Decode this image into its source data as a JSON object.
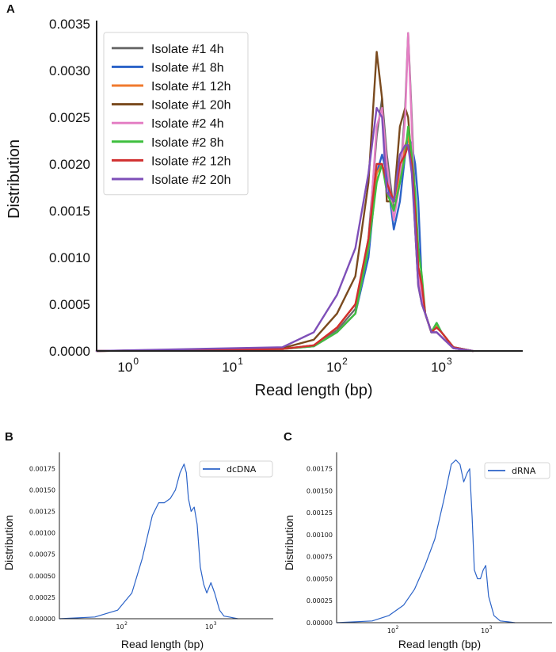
{
  "panels": {
    "A": "A",
    "B": "B",
    "C": "C"
  },
  "chart_data": [
    {
      "panel": "A",
      "type": "line",
      "xscale": "log",
      "xlim": [
        0.5,
        6000
      ],
      "ylim": [
        0,
        0.0035
      ],
      "xlabel": "Read length (bp)",
      "ylabel": "Distribution",
      "y_ticks": [
        "0.0000",
        "0.0005",
        "0.0010",
        "0.0015",
        "0.0020",
        "0.0025",
        "0.0030",
        "0.0035"
      ],
      "x_ticks": [
        {
          "value": 1,
          "base": "10",
          "exp": "0"
        },
        {
          "value": 10,
          "base": "10",
          "exp": "1"
        },
        {
          "value": 100,
          "base": "10",
          "exp": "2"
        },
        {
          "value": 1000,
          "base": "10",
          "exp": "3"
        }
      ],
      "legend_position": "top-left",
      "series": [
        {
          "name": "Isolate #1 4h",
          "color": "#6b6b6b",
          "x": [
            0.5,
            30,
            60,
            100,
            150,
            200,
            240,
            270,
            300,
            350,
            400,
            450,
            480,
            520,
            560,
            600,
            650,
            700,
            800,
            900,
            1000,
            1300,
            2000
          ],
          "y": [
            0,
            2e-05,
            6e-05,
            0.00022,
            0.00045,
            0.0012,
            0.0023,
            0.0027,
            0.0021,
            0.0015,
            0.0018,
            0.0026,
            0.0034,
            0.0025,
            0.0016,
            0.0008,
            0.0006,
            0.0004,
            0.0002,
            0.0002,
            0.00015,
            3e-05,
            0
          ]
        },
        {
          "name": "Isolate #1 8h",
          "color": "#2b63c8",
          "x": [
            0.5,
            30,
            60,
            100,
            150,
            200,
            240,
            270,
            300,
            350,
            400,
            450,
            480,
            520,
            560,
            600,
            650,
            700,
            800,
            900,
            1000,
            1300,
            2000
          ],
          "y": [
            0,
            2e-05,
            5e-05,
            0.0002,
            0.0004,
            0.001,
            0.0019,
            0.0021,
            0.0019,
            0.0013,
            0.0016,
            0.0021,
            0.0023,
            0.0022,
            0.002,
            0.0016,
            0.0007,
            0.0004,
            0.0002,
            0.0003,
            0.0002,
            4e-05,
            0
          ]
        },
        {
          "name": "Isolate #1 12h",
          "color": "#f07a2e",
          "x": [
            0.5,
            30,
            60,
            100,
            150,
            200,
            240,
            270,
            300,
            350,
            400,
            450,
            480,
            520,
            560,
            600,
            650,
            700,
            800,
            900,
            1000,
            1300,
            2000
          ],
          "y": [
            0,
            2e-05,
            6e-05,
            0.00025,
            0.0005,
            0.0011,
            0.0019,
            0.002,
            0.0018,
            0.0016,
            0.0019,
            0.0022,
            0.0023,
            0.002,
            0.0015,
            0.0009,
            0.0007,
            0.0004,
            0.0002,
            0.00028,
            0.0002,
            4e-05,
            0
          ]
        },
        {
          "name": "Isolate #1 20h",
          "color": "#7a4a1e",
          "x": [
            0.5,
            30,
            60,
            100,
            150,
            200,
            240,
            270,
            300,
            350,
            400,
            450,
            480,
            520,
            560,
            600,
            650,
            700,
            800,
            900,
            1000,
            1300,
            2000
          ],
          "y": [
            0,
            3e-05,
            0.00012,
            0.0004,
            0.0008,
            0.0018,
            0.0032,
            0.0027,
            0.0016,
            0.0016,
            0.0024,
            0.0026,
            0.0025,
            0.002,
            0.0013,
            0.0007,
            0.0005,
            0.0004,
            0.0002,
            0.0002,
            0.00015,
            3e-05,
            0
          ]
        },
        {
          "name": "Isolate #2 4h",
          "color": "#e47fc4",
          "x": [
            0.5,
            30,
            60,
            100,
            150,
            200,
            240,
            270,
            300,
            350,
            400,
            450,
            480,
            520,
            560,
            600,
            650,
            700,
            800,
            900,
            1000,
            1300,
            2000
          ],
          "y": [
            0,
            2e-05,
            5e-05,
            0.0002,
            0.0004,
            0.0011,
            0.0024,
            0.0026,
            0.002,
            0.0014,
            0.0018,
            0.0025,
            0.0034,
            0.0024,
            0.0015,
            0.0008,
            0.0006,
            0.0004,
            0.0002,
            0.0002,
            0.00015,
            3e-05,
            0
          ]
        },
        {
          "name": "Isolate #2 8h",
          "color": "#3fbf3f",
          "x": [
            0.5,
            30,
            60,
            100,
            150,
            200,
            240,
            270,
            300,
            350,
            400,
            450,
            480,
            520,
            560,
            600,
            650,
            700,
            800,
            900,
            1000,
            1300,
            2000
          ],
          "y": [
            0,
            2e-05,
            5e-05,
            0.0002,
            0.0004,
            0.0011,
            0.0018,
            0.002,
            0.0017,
            0.0015,
            0.0018,
            0.0021,
            0.0024,
            0.0021,
            0.0017,
            0.0011,
            0.0008,
            0.0004,
            0.0002,
            0.0003,
            0.0002,
            4e-05,
            0
          ]
        },
        {
          "name": "Isolate #2 12h",
          "color": "#d12f2f",
          "x": [
            0.5,
            30,
            60,
            100,
            150,
            200,
            240,
            270,
            300,
            350,
            400,
            450,
            480,
            520,
            560,
            600,
            650,
            700,
            800,
            900,
            1000,
            1300,
            2000
          ],
          "y": [
            0,
            2e-05,
            6e-05,
            0.00025,
            0.0005,
            0.0012,
            0.002,
            0.002,
            0.0018,
            0.0016,
            0.002,
            0.0021,
            0.0022,
            0.002,
            0.0015,
            0.0009,
            0.0007,
            0.0004,
            0.0002,
            0.00025,
            0.0002,
            4e-05,
            0
          ]
        },
        {
          "name": "Isolate #2 20h",
          "color": "#7e4fb8",
          "x": [
            0.5,
            30,
            60,
            100,
            150,
            200,
            240,
            270,
            300,
            350,
            400,
            450,
            480,
            520,
            560,
            600,
            650,
            700,
            800,
            900,
            1000,
            1300,
            2000
          ],
          "y": [
            0,
            4e-05,
            0.0002,
            0.0006,
            0.0011,
            0.0019,
            0.0026,
            0.0025,
            0.0017,
            0.0016,
            0.0021,
            0.0022,
            0.0022,
            0.0019,
            0.0013,
            0.0007,
            0.0005,
            0.0004,
            0.0002,
            0.0002,
            0.00015,
            3e-05,
            0
          ]
        }
      ]
    },
    {
      "panel": "B",
      "type": "line",
      "xscale": "log",
      "xlim": [
        20,
        5000
      ],
      "ylim": [
        0,
        0.0019
      ],
      "xlabel": "Read length (bp)",
      "ylabel": "Distribution",
      "y_ticks": [
        "0.00000",
        "0.00025",
        "0.00050",
        "0.00075",
        "0.00100",
        "0.00125",
        "0.00150",
        "0.00175"
      ],
      "x_ticks": [
        {
          "value": 100,
          "base": "10",
          "exp": "2"
        },
        {
          "value": 1000,
          "base": "10",
          "exp": "3"
        }
      ],
      "legend_position": "top-right",
      "series": [
        {
          "name": "dcDNA",
          "color": "#2b63c8",
          "x": [
            20,
            50,
            90,
            130,
            170,
            220,
            260,
            300,
            350,
            400,
            450,
            500,
            530,
            560,
            600,
            650,
            700,
            760,
            830,
            900,
            1000,
            1100,
            1250,
            1400,
            1600,
            2000
          ],
          "y": [
            0,
            2e-05,
            0.0001,
            0.0003,
            0.0007,
            0.0012,
            0.00135,
            0.00135,
            0.0014,
            0.0015,
            0.0017,
            0.0018,
            0.0017,
            0.0014,
            0.00125,
            0.0013,
            0.0011,
            0.0006,
            0.0004,
            0.0003,
            0.00042,
            0.0003,
            0.0001,
            3e-05,
            2e-05,
            0
          ]
        }
      ]
    },
    {
      "panel": "C",
      "type": "line",
      "xscale": "log",
      "xlim": [
        25,
        5000
      ],
      "ylim": [
        0,
        0.0019
      ],
      "xlabel": "Read length (bp)",
      "ylabel": "Distribution",
      "y_ticks": [
        "0.00000",
        "0.00025",
        "0.00050",
        "0.00075",
        "0.00100",
        "0.00125",
        "0.00150",
        "0.00175"
      ],
      "x_ticks": [
        {
          "value": 100,
          "base": "10",
          "exp": "2"
        },
        {
          "value": 1000,
          "base": "10",
          "exp": "3"
        }
      ],
      "legend_position": "top-right",
      "series": [
        {
          "name": "dRNA",
          "color": "#2b63c8",
          "x": [
            25,
            60,
            90,
            130,
            170,
            220,
            280,
            350,
            420,
            470,
            520,
            570,
            620,
            660,
            700,
            740,
            800,
            860,
            920,
            980,
            1050,
            1200,
            1400,
            1700,
            2000
          ],
          "y": [
            0,
            2e-05,
            8e-05,
            0.0002,
            0.00038,
            0.00065,
            0.00095,
            0.0014,
            0.0018,
            0.00185,
            0.0018,
            0.0016,
            0.0017,
            0.00175,
            0.0012,
            0.0006,
            0.0005,
            0.0005,
            0.0006,
            0.00065,
            0.0003,
            8e-05,
            2e-05,
            1e-05,
            0
          ]
        }
      ]
    }
  ]
}
